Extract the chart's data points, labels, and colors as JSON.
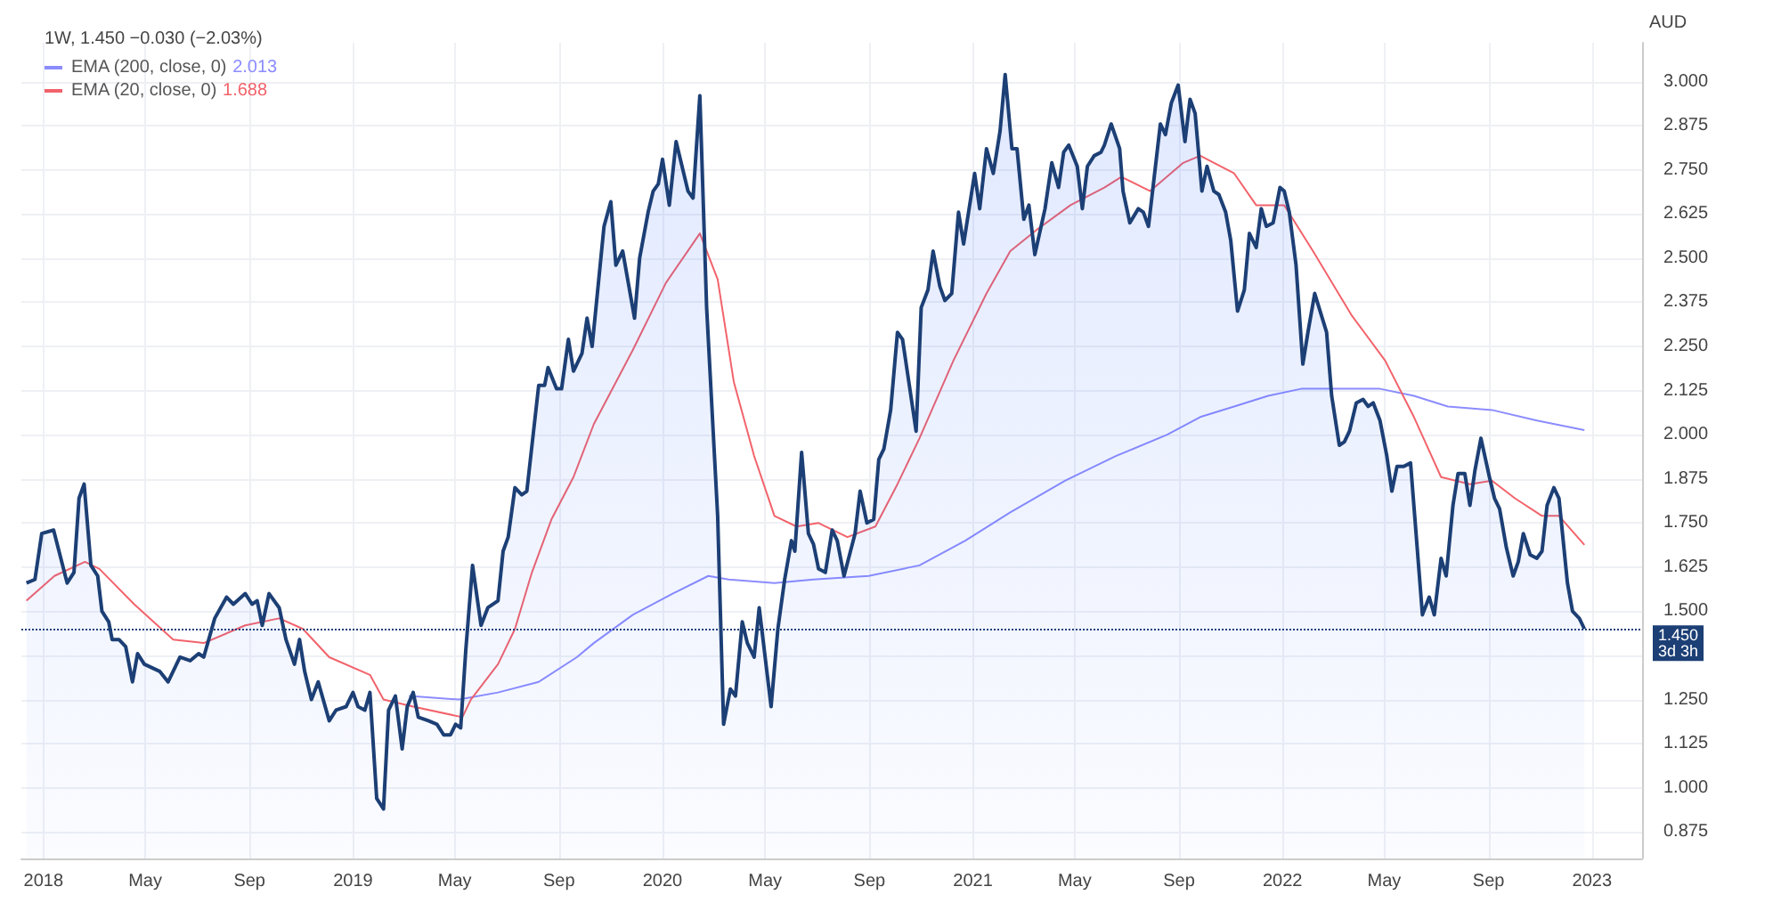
{
  "chart_data": {
    "type": "area",
    "title": "1W, 1.450 −0.030 (−2.03%)",
    "ylabel": "AUD",
    "xlim": [
      "2017-12-06",
      "2023-03-01"
    ],
    "xticks": [
      {
        "value": "2018-01-01",
        "label": "2018"
      },
      {
        "value": "2018-05-01",
        "label": "May"
      },
      {
        "value": "2018-09-01",
        "label": "Sep"
      },
      {
        "value": "2019-01-01",
        "label": "2019"
      },
      {
        "value": "2019-05-01",
        "label": "May"
      },
      {
        "value": "2019-09-01",
        "label": "Sep"
      },
      {
        "value": "2020-01-01",
        "label": "2020"
      },
      {
        "value": "2020-05-01",
        "label": "May"
      },
      {
        "value": "2020-09-01",
        "label": "Sep"
      },
      {
        "value": "2021-01-01",
        "label": "2021"
      },
      {
        "value": "2021-05-01",
        "label": "May"
      },
      {
        "value": "2021-09-01",
        "label": "Sep"
      },
      {
        "value": "2022-01-01",
        "label": "2022"
      },
      {
        "value": "2022-05-01",
        "label": "May"
      },
      {
        "value": "2022-09-01",
        "label": "Sep"
      },
      {
        "value": "2023-01-01",
        "label": "2023"
      }
    ],
    "ylim": [
      0.8,
      3.11
    ],
    "yticks": [
      0.875,
      {
        "value": 1,
        "label": "1.000"
      },
      1.125,
      {
        "value": 1.25,
        "label": "1.250"
      },
      {
        "value": 1.375,
        "label": null
      },
      {
        "value": 1.5,
        "label": "1.500"
      },
      1.625,
      {
        "value": 1.75,
        "label": "1.750"
      },
      1.875,
      {
        "value": 2,
        "label": "2.000"
      },
      2.125,
      {
        "value": 2.25,
        "label": "2.250"
      },
      2.375,
      {
        "value": 2.5,
        "label": "2.500"
      },
      2.625,
      {
        "value": 2.75,
        "label": "2.750"
      },
      2.875,
      {
        "value": 3,
        "label": "3.000"
      }
    ],
    "annotations": [
      "2.013",
      "1.688"
    ],
    "grid": true,
    "legend": "top left",
    "marker": "none",
    "ref_lines": [
      {
        "axis": "y",
        "value": 1.45,
        "label": "1.450\n3d 3h",
        "color": "#1c3f75",
        "line_style": "dotted"
      }
    ],
    "series": [
      {
        "type": "area",
        "color": "#1c3f75",
        "x": [
          "2017-12-12",
          "2017-12-22",
          "2017-12-30",
          "2018-01-13",
          "2018-01-29",
          "2018-02-06",
          "2018-02-12",
          "2018-02-18",
          "2018-02-26",
          "2018-03-06",
          "2018-03-11",
          "2018-03-19",
          "2018-03-23",
          "2018-03-31",
          "2018-04-08",
          "2018-04-16",
          "2018-04-22",
          "2018-04-30",
          "2018-05-18",
          "2018-05-28",
          "2018-06-11",
          "2018-06-23",
          "2018-07-03",
          "2018-07-09",
          "2018-07-22",
          "2018-08-05",
          "2018-08-13",
          "2018-08-27",
          "2018-09-04",
          "2018-09-10",
          "2018-09-16",
          "2018-09-24",
          "2018-10-06",
          "2018-10-14",
          "2018-10-24",
          "2018-10-30",
          "2018-11-05",
          "2018-11-13",
          "2018-11-21",
          "2018-12-04",
          "2018-12-12",
          "2018-12-24",
          "2019-01-01",
          "2019-01-07",
          "2019-01-15",
          "2019-01-21",
          "2019-01-29",
          "2019-02-06",
          "2019-02-12",
          "2019-02-20",
          "2019-02-28",
          "2019-03-06",
          "2019-03-13",
          "2019-03-19",
          "2019-03-31",
          "2019-04-10",
          "2019-04-18",
          "2019-04-26",
          "2019-05-02",
          "2019-05-08",
          "2019-05-14",
          "2019-05-22",
          "2019-06-01",
          "2019-06-09",
          "2019-06-21",
          "2019-06-27",
          "2019-07-03",
          "2019-07-11",
          "2019-07-19",
          "2019-07-25",
          "2019-08-08",
          "2019-08-15",
          "2019-08-19",
          "2019-08-29",
          "2019-09-04",
          "2019-09-12",
          "2019-09-18",
          "2019-09-28",
          "2019-10-04",
          "2019-10-10",
          "2019-10-24",
          "2019-11-01",
          "2019-11-07",
          "2019-11-15",
          "2019-11-29",
          "2019-12-05",
          "2019-12-15",
          "2019-12-21",
          "2019-12-27",
          "2020-01-01",
          "2020-01-09",
          "2020-01-17",
          "2020-01-31",
          "2020-02-06",
          "2020-02-14",
          "2020-02-22",
          "2020-03-06",
          "2020-03-13",
          "2020-03-21",
          "2020-03-27",
          "2020-04-04",
          "2020-04-10",
          "2020-04-18",
          "2020-04-24",
          "2020-05-08",
          "2020-05-16",
          "2020-05-24",
          "2020-06-01",
          "2020-06-05",
          "2020-06-13",
          "2020-06-21",
          "2020-06-27",
          "2020-07-03",
          "2020-07-11",
          "2020-07-19",
          "2020-07-25",
          "2020-08-02",
          "2020-08-15",
          "2020-08-21",
          "2020-08-29",
          "2020-09-06",
          "2020-09-12",
          "2020-09-18",
          "2020-09-26",
          "2020-10-04",
          "2020-10-10",
          "2020-10-26",
          "2020-11-01",
          "2020-11-09",
          "2020-11-15",
          "2020-11-23",
          "2020-11-29",
          "2020-12-07",
          "2020-12-15",
          "2020-12-21",
          "2021-01-03",
          "2021-01-09",
          "2021-01-17",
          "2021-01-25",
          "2021-02-02",
          "2021-02-08",
          "2021-02-16",
          "2021-02-22",
          "2021-03-02",
          "2021-03-08",
          "2021-03-15",
          "2021-03-27",
          "2021-04-04",
          "2021-04-12",
          "2021-04-18",
          "2021-04-24",
          "2021-05-04",
          "2021-05-10",
          "2021-05-16",
          "2021-05-24",
          "2021-06-01",
          "2021-06-05",
          "2021-06-13",
          "2021-06-23",
          "2021-06-27",
          "2021-07-05",
          "2021-07-15",
          "2021-07-21",
          "2021-07-27",
          "2021-08-10",
          "2021-08-16",
          "2021-08-23",
          "2021-08-31",
          "2021-09-08",
          "2021-09-14",
          "2021-09-20",
          "2021-09-28",
          "2021-10-04",
          "2021-10-12",
          "2021-10-18",
          "2021-10-26",
          "2021-11-01",
          "2021-11-09",
          "2021-11-17",
          "2021-11-23",
          "2021-12-01",
          "2021-12-07",
          "2021-12-13",
          "2021-12-21",
          "2021-12-29",
          "2022-01-03",
          "2022-01-09",
          "2022-01-17",
          "2022-01-25",
          "2022-01-31",
          "2022-02-08",
          "2022-02-22",
          "2022-02-28",
          "2022-03-09",
          "2022-03-15",
          "2022-03-21",
          "2022-03-29",
          "2022-04-06",
          "2022-04-12",
          "2022-04-18",
          "2022-04-26",
          "2022-05-04",
          "2022-05-10",
          "2022-05-16",
          "2022-05-24",
          "2022-06-01",
          "2022-06-15",
          "2022-06-23",
          "2022-06-29",
          "2022-07-07",
          "2022-07-13",
          "2022-07-21",
          "2022-07-27",
          "2022-08-04",
          "2022-08-10",
          "2022-08-16",
          "2022-08-23",
          "2022-09-02",
          "2022-09-08",
          "2022-09-14",
          "2022-09-22",
          "2022-09-30",
          "2022-10-06",
          "2022-10-12",
          "2022-10-20",
          "2022-10-28",
          "2022-11-03",
          "2022-11-09",
          "2022-11-17",
          "2022-11-23",
          "2022-12-03",
          "2022-12-09",
          "2022-12-17",
          "2022-12-23"
        ],
        "values": [
          1.58,
          1.59,
          1.72,
          1.73,
          1.58,
          1.61,
          1.82,
          1.86,
          1.63,
          1.6,
          1.5,
          1.47,
          1.42,
          1.42,
          1.4,
          1.3,
          1.38,
          1.35,
          1.33,
          1.3,
          1.37,
          1.36,
          1.38,
          1.37,
          1.48,
          1.54,
          1.52,
          1.55,
          1.52,
          1.53,
          1.46,
          1.55,
          1.51,
          1.42,
          1.35,
          1.42,
          1.33,
          1.25,
          1.3,
          1.19,
          1.22,
          1.23,
          1.27,
          1.23,
          1.22,
          1.27,
          0.97,
          0.94,
          1.22,
          1.26,
          1.11,
          1.23,
          1.27,
          1.2,
          1.19,
          1.18,
          1.15,
          1.15,
          1.18,
          1.17,
          1.39,
          1.63,
          1.46,
          1.51,
          1.53,
          1.67,
          1.71,
          1.85,
          1.83,
          1.84,
          2.14,
          2.14,
          2.19,
          2.13,
          2.13,
          2.27,
          2.18,
          2.23,
          2.33,
          2.25,
          2.59,
          2.66,
          2.48,
          2.52,
          2.33,
          2.5,
          2.63,
          2.69,
          2.71,
          2.78,
          2.65,
          2.83,
          2.69,
          2.67,
          2.96,
          2.36,
          1.77,
          1.18,
          1.28,
          1.26,
          1.47,
          1.41,
          1.37,
          1.51,
          1.23,
          1.45,
          1.59,
          1.7,
          1.67,
          1.95,
          1.72,
          1.69,
          1.62,
          1.61,
          1.73,
          1.7,
          1.6,
          1.72,
          1.84,
          1.75,
          1.76,
          1.93,
          1.96,
          2.07,
          2.29,
          2.27,
          2.01,
          2.36,
          2.41,
          2.52,
          2.42,
          2.38,
          2.4,
          2.63,
          2.54,
          2.74,
          2.64,
          2.81,
          2.74,
          2.86,
          3.02,
          2.81,
          2.81,
          2.61,
          2.65,
          2.51,
          2.64,
          2.77,
          2.7,
          2.8,
          2.82,
          2.76,
          2.64,
          2.76,
          2.79,
          2.8,
          2.82,
          2.88,
          2.81,
          2.69,
          2.6,
          2.64,
          2.63,
          2.59,
          2.88,
          2.85,
          2.94,
          2.99,
          2.83,
          2.95,
          2.91,
          2.69,
          2.76,
          2.69,
          2.68,
          2.63,
          2.55,
          2.35,
          2.41,
          2.57,
          2.53,
          2.64,
          2.59,
          2.6,
          2.7,
          2.69,
          2.63,
          2.48,
          2.2,
          2.29,
          2.4,
          2.29,
          2.11,
          1.97,
          1.98,
          2.01,
          2.09,
          2.1,
          2.08,
          2.09,
          2.04,
          1.94,
          1.84,
          1.91,
          1.91,
          1.92,
          1.49,
          1.54,
          1.49,
          1.65,
          1.6,
          1.8,
          1.89,
          1.89,
          1.8,
          1.9,
          1.99,
          1.88,
          1.82,
          1.79,
          1.68,
          1.6,
          1.64,
          1.72,
          1.66,
          1.65,
          1.67,
          1.8,
          1.85,
          1.82,
          1.58,
          1.5,
          1.48,
          1.45
        ]
      },
      {
        "type": "line",
        "name": "EMA (200, close, 0)",
        "color": "#8c8cff",
        "x": [
          "2019-03-08",
          "2019-05-06",
          "2019-06-21",
          "2019-08-08",
          "2019-09-22",
          "2019-10-12",
          "2019-11-27",
          "2020-01-13",
          "2020-02-24",
          "2020-03-19",
          "2020-05-12",
          "2020-06-27",
          "2020-08-31",
          "2020-10-30",
          "2020-12-23",
          "2021-02-14",
          "2021-04-20",
          "2021-06-19",
          "2021-08-18",
          "2021-09-26",
          "2021-11-05",
          "2021-12-15",
          "2022-01-23",
          "2022-03-03",
          "2022-04-26",
          "2022-06-05",
          "2022-07-15",
          "2022-09-05",
          "2022-10-28",
          "2022-12-23"
        ],
        "values": [
          1.26,
          1.25,
          1.27,
          1.3,
          1.37,
          1.41,
          1.49,
          1.55,
          1.6,
          1.59,
          1.58,
          1.59,
          1.6,
          1.63,
          1.7,
          1.78,
          1.87,
          1.94,
          2.0,
          2.05,
          2.08,
          2.11,
          2.13,
          2.13,
          2.13,
          2.11,
          2.08,
          2.07,
          2.04,
          2.013
        ]
      },
      {
        "type": "line",
        "name": "EMA (20, close, 0)",
        "color": "#f2636b",
        "x": [
          "2017-12-12",
          "2018-01-14",
          "2018-02-19",
          "2018-03-08",
          "2018-04-18",
          "2018-06-03",
          "2018-07-09",
          "2018-08-27",
          "2018-10-06",
          "2018-11-03",
          "2018-12-04",
          "2019-01-21",
          "2019-02-06",
          "2019-03-13",
          "2019-05-10",
          "2019-05-20",
          "2019-06-21",
          "2019-07-11",
          "2019-07-31",
          "2019-08-23",
          "2019-09-18",
          "2019-10-12",
          "2019-11-27",
          "2020-01-05",
          "2020-02-14",
          "2020-03-06",
          "2020-03-25",
          "2020-04-18",
          "2020-05-12",
          "2020-06-07",
          "2020-07-03",
          "2020-08-06",
          "2020-09-08",
          "2020-10-04",
          "2020-10-30",
          "2020-12-09",
          "2021-01-17",
          "2021-02-14",
          "2021-03-17",
          "2021-04-26",
          "2021-06-05",
          "2021-06-25",
          "2021-07-29",
          "2021-09-06",
          "2021-09-26",
          "2021-11-05",
          "2021-12-01",
          "2022-01-03",
          "2022-02-06",
          "2022-03-23",
          "2022-05-02",
          "2022-06-05",
          "2022-07-07",
          "2022-08-10",
          "2022-09-05",
          "2022-10-02",
          "2022-11-03",
          "2022-11-23",
          "2022-12-23"
        ],
        "values": [
          1.53,
          1.6,
          1.64,
          1.62,
          1.52,
          1.42,
          1.41,
          1.46,
          1.48,
          1.45,
          1.37,
          1.32,
          1.25,
          1.23,
          1.2,
          1.25,
          1.35,
          1.45,
          1.61,
          1.76,
          1.88,
          2.03,
          2.24,
          2.43,
          2.57,
          2.44,
          2.15,
          1.94,
          1.77,
          1.74,
          1.75,
          1.71,
          1.74,
          1.86,
          1.99,
          2.21,
          2.4,
          2.52,
          2.58,
          2.65,
          2.7,
          2.73,
          2.69,
          2.77,
          2.79,
          2.74,
          2.65,
          2.65,
          2.52,
          2.34,
          2.21,
          2.05,
          1.88,
          1.86,
          1.87,
          1.82,
          1.77,
          1.77,
          1.688
        ]
      }
    ]
  }
}
